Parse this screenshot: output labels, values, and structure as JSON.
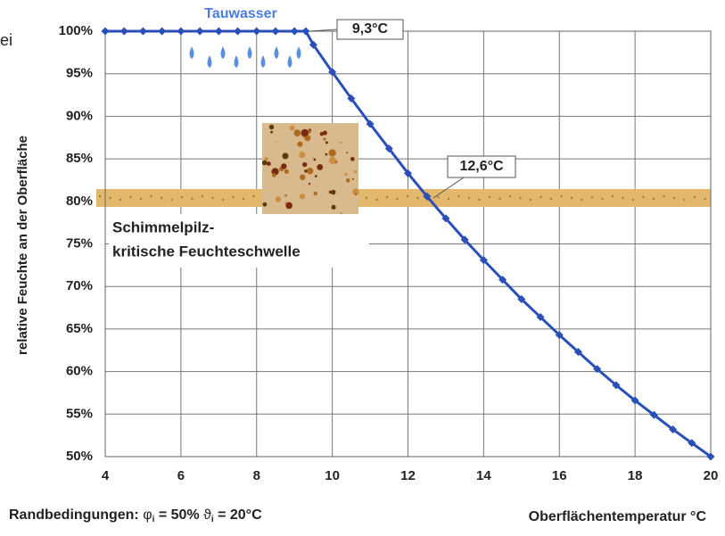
{
  "chart_data": {
    "type": "line",
    "y_label": "relative Feuchte an der Oberfläche",
    "x_label": "Oberflächentemperatur °C",
    "cut_text": "ei",
    "footnote": {
      "prefix": "Randbedingungen:",
      "phi": "φ",
      "phi_sub": "i",
      "phi_val": "= 50%",
      "theta": "ϑ",
      "theta_sub": "i",
      "theta_val": "= 20°C"
    },
    "annotations": {
      "condensation": "Tauwasser",
      "dew_point": "9,3°C",
      "mold_point": "12,6°C",
      "threshold_1": "Schimmelpilz-",
      "threshold_2": "kritische Feuchteschwelle"
    },
    "x": [
      4,
      4.5,
      5,
      5.5,
      6,
      6.5,
      7,
      7.5,
      8,
      8.5,
      9,
      9.3,
      9.5,
      10,
      10.5,
      11,
      11.5,
      12,
      12.5,
      13,
      13.5,
      14,
      14.5,
      15,
      15.5,
      16,
      16.5,
      17,
      17.5,
      18,
      18.5,
      19,
      19.5,
      20
    ],
    "series": [
      {
        "color": "#2a4fb8",
        "values": [
          100,
          100,
          100,
          100,
          100,
          100,
          100,
          100,
          100,
          100,
          100,
          100,
          98.4,
          95.2,
          92.1,
          89.1,
          86.2,
          83.3,
          80.6,
          78,
          75.5,
          73.1,
          70.8,
          68.5,
          66.4,
          64.3,
          62.3,
          60.3,
          58.4,
          56.6,
          54.9,
          53.2,
          51.6,
          50
        ]
      }
    ],
    "xlim": [
      4,
      20
    ],
    "xticks": [
      4,
      6,
      8,
      10,
      12,
      14,
      16,
      18,
      20
    ],
    "ylim": [
      50,
      100
    ],
    "yticks": [
      {
        "value": 50,
        "label": "50%"
      },
      {
        "value": 55,
        "label": "55%"
      },
      {
        "value": 60,
        "label": "60%"
      },
      {
        "value": 65,
        "label": "65%"
      },
      {
        "value": 70,
        "label": "70%"
      },
      {
        "value": 75,
        "label": "75%"
      },
      {
        "value": 80,
        "label": "80%"
      },
      {
        "value": 85,
        "label": "85%"
      },
      {
        "value": 90,
        "label": "90%"
      },
      {
        "value": 95,
        "label": "95%"
      },
      {
        "value": 100,
        "label": "100%"
      }
    ],
    "grid": true
  }
}
